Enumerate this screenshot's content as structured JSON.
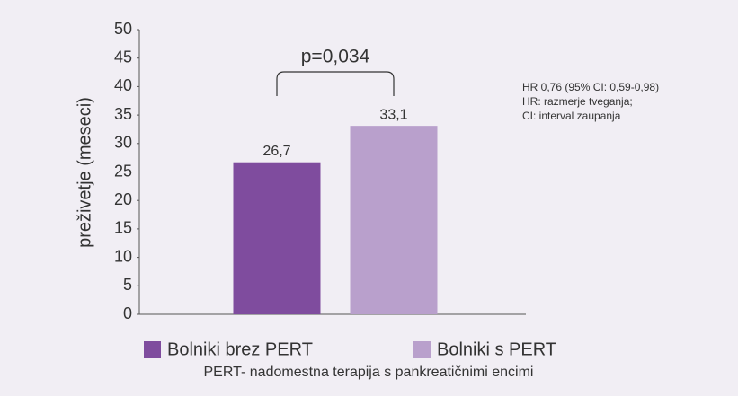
{
  "chart_data": {
    "type": "bar",
    "y_label": "preživetje (meseci)",
    "ylim": [
      0,
      50
    ],
    "yticks": [
      0,
      5,
      10,
      15,
      20,
      25,
      30,
      35,
      40,
      45,
      50
    ],
    "series": [
      {
        "name": "Bolniki brez PERT",
        "color": "#7f4c9e",
        "values": [
          26.7
        ],
        "value_labels": [
          "26,7"
        ]
      },
      {
        "name": "Bolniki s PERT",
        "color": "#b9a0cc",
        "values": [
          33.1
        ],
        "value_labels": [
          "33,1"
        ]
      }
    ],
    "annotations": [
      "p=0,034",
      "HR 0,76 (95% CI: 0,59-0,98)",
      "HR: razmerje tveganja;",
      "CI: interval zaupanja"
    ],
    "footnote": "PERT- nadomestna terapija s pankreatičnimi encimi"
  }
}
